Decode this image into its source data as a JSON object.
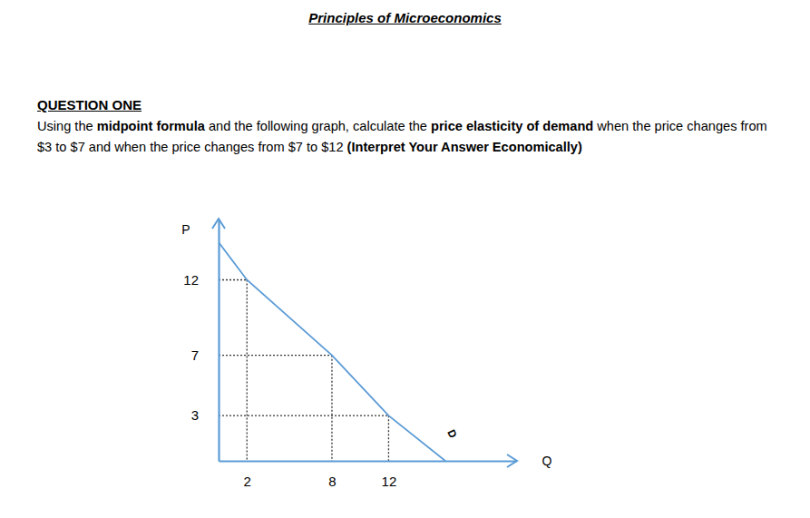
{
  "header": {
    "title": "Principles of Microeconomics"
  },
  "question": {
    "heading": "QUESTION ONE",
    "text": [
      {
        "text": "Using the ",
        "bold": false
      },
      {
        "text": "midpoint formula",
        "bold": true
      },
      {
        "text": " and the following graph, calculate the ",
        "bold": false
      },
      {
        "text": "price elasticity of demand",
        "bold": true
      },
      {
        "text": " when the price changes from $3 to $7 and when the price changes from $7 to $12 ",
        "bold": false
      },
      {
        "text": "(Interpret Your Answer Economically)",
        "bold": true
      }
    ]
  },
  "chart_data": {
    "type": "line",
    "x_label": "Q",
    "y_label": "P",
    "x": [
      0,
      2,
      8,
      12,
      16
    ],
    "series": [
      {
        "name": "D",
        "color": "#5b9bd5",
        "values": [
          14.5,
          12,
          7,
          3,
          0
        ]
      }
    ],
    "xlim": [
      0,
      21
    ],
    "ylim": [
      0,
      16
    ],
    "xticks": [
      2,
      8,
      12
    ],
    "yticks": [
      3,
      7,
      12
    ],
    "grid": false
  }
}
